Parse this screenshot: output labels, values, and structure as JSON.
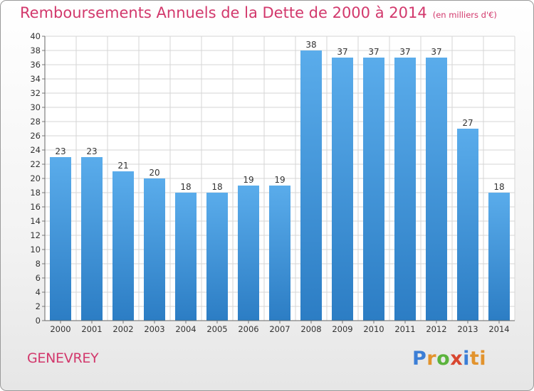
{
  "chart_data": {
    "type": "bar",
    "title": "Remboursements Annuels de la Dette de 2000 à 2014",
    "unit": "(en milliers d'€)",
    "categories": [
      "2000",
      "2001",
      "2002",
      "2003",
      "2004",
      "2005",
      "2006",
      "2007",
      "2008",
      "2009",
      "2010",
      "2011",
      "2012",
      "2013",
      "2014"
    ],
    "values": [
      23,
      23,
      21,
      20,
      18,
      18,
      19,
      19,
      38,
      37,
      37,
      37,
      37,
      27,
      18
    ],
    "ylim": [
      0,
      40
    ],
    "ytick_step": 2,
    "grid": true,
    "bar_color": "#4a9ee0"
  },
  "commune": "GENEVREY",
  "logo": "Proxiti",
  "colors": {
    "title": "#d2386c",
    "grid": "#d6d6d6"
  }
}
